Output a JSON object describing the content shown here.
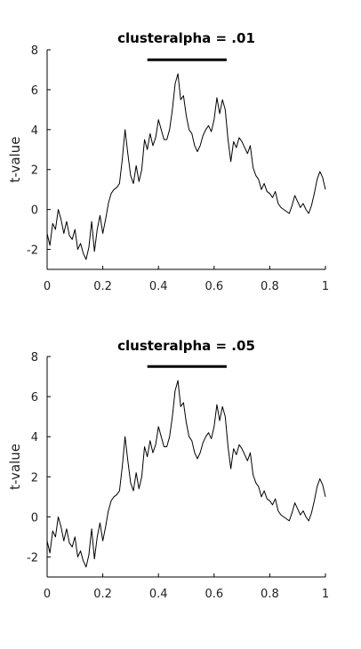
{
  "chart_data": [
    {
      "type": "line",
      "title": "clusteralpha = .01",
      "xlabel": "",
      "ylabel": "t-value",
      "xlim": [
        0,
        1
      ],
      "ylim": [
        -3,
        8
      ],
      "xticks": [
        "0",
        "0.2",
        "0.4",
        "0.6",
        "0.8",
        "1"
      ],
      "yticks": [
        "-2",
        "0",
        "2",
        "4",
        "6",
        "8"
      ],
      "grid": false,
      "line_color": "#000000",
      "cluster_bar": {
        "start": 0.36,
        "end": 0.645,
        "y": 7.5,
        "color": "#000000"
      },
      "series": [
        {
          "x": [
            0,
            0.01,
            0.02,
            0.03,
            0.04,
            0.05,
            0.06,
            0.07,
            0.08,
            0.09,
            0.1,
            0.11,
            0.12,
            0.13,
            0.14,
            0.15,
            0.16,
            0.17,
            0.18,
            0.19,
            0.2,
            0.21,
            0.22,
            0.23,
            0.24,
            0.25,
            0.26,
            0.27,
            0.28,
            0.29,
            0.3,
            0.31,
            0.32,
            0.33,
            0.34,
            0.35,
            0.36,
            0.37,
            0.38,
            0.39,
            0.4,
            0.41,
            0.42,
            0.43,
            0.44,
            0.45,
            0.46,
            0.47,
            0.48,
            0.49,
            0.5,
            0.51,
            0.52,
            0.53,
            0.54,
            0.55,
            0.56,
            0.57,
            0.58,
            0.59,
            0.6,
            0.61,
            0.62,
            0.63,
            0.64,
            0.65,
            0.66,
            0.67,
            0.68,
            0.69,
            0.7,
            0.71,
            0.72,
            0.73,
            0.74,
            0.75,
            0.76,
            0.77,
            0.78,
            0.79,
            0.8,
            0.81,
            0.82,
            0.83,
            0.84,
            0.85,
            0.86,
            0.87,
            0.88,
            0.89,
            0.9,
            0.91,
            0.92,
            0.93,
            0.94,
            0.95,
            0.96,
            0.97,
            0.98,
            0.99,
            1
          ],
          "y": [
            -1.2,
            -1.8,
            -0.7,
            -1.0,
            0.0,
            -0.5,
            -1.2,
            -0.6,
            -1.3,
            -1.5,
            -1.0,
            -2.0,
            -1.7,
            -2.2,
            -2.5,
            -1.9,
            -0.6,
            -2.1,
            -1.0,
            -0.3,
            -1.2,
            -0.5,
            0.3,
            0.8,
            1.0,
            1.1,
            1.3,
            2.5,
            4.0,
            2.8,
            1.7,
            1.3,
            2.2,
            1.4,
            2.0,
            3.5,
            3.0,
            3.8,
            3.2,
            3.6,
            4.5,
            4.0,
            3.5,
            3.5,
            4.0,
            5.0,
            6.3,
            6.8,
            5.5,
            5.7,
            4.7,
            4.0,
            3.8,
            3.2,
            2.9,
            3.2,
            3.7,
            4.0,
            4.2,
            3.9,
            4.5,
            5.6,
            4.8,
            5.5,
            5.0,
            3.5,
            2.4,
            3.4,
            3.1,
            3.6,
            3.4,
            3.1,
            2.8,
            3.2,
            2.1,
            1.7,
            1.5,
            1.0,
            1.3,
            0.9,
            0.8,
            0.6,
            0.9,
            0.3,
            0.1,
            0.0,
            -0.1,
            -0.2,
            0.2,
            0.7,
            0.4,
            0.1,
            0.3,
            0.0,
            -0.2,
            0.2,
            0.8,
            1.5,
            1.9,
            1.6,
            1.0
          ]
        }
      ]
    },
    {
      "type": "line",
      "title": "clusteralpha = .05",
      "xlabel": "",
      "ylabel": "t-value",
      "xlim": [
        0,
        1
      ],
      "ylim": [
        -3,
        8
      ],
      "xticks": [
        "0",
        "0.2",
        "0.4",
        "0.6",
        "0.8",
        "1"
      ],
      "yticks": [
        "-2",
        "0",
        "2",
        "4",
        "6",
        "8"
      ],
      "grid": false,
      "line_color": "#000000",
      "cluster_bar": {
        "start": 0.36,
        "end": 0.645,
        "y": 7.5,
        "color": "#000000"
      },
      "series": [
        {
          "x": [
            0,
            0.01,
            0.02,
            0.03,
            0.04,
            0.05,
            0.06,
            0.07,
            0.08,
            0.09,
            0.1,
            0.11,
            0.12,
            0.13,
            0.14,
            0.15,
            0.16,
            0.17,
            0.18,
            0.19,
            0.2,
            0.21,
            0.22,
            0.23,
            0.24,
            0.25,
            0.26,
            0.27,
            0.28,
            0.29,
            0.3,
            0.31,
            0.32,
            0.33,
            0.34,
            0.35,
            0.36,
            0.37,
            0.38,
            0.39,
            0.4,
            0.41,
            0.42,
            0.43,
            0.44,
            0.45,
            0.46,
            0.47,
            0.48,
            0.49,
            0.5,
            0.51,
            0.52,
            0.53,
            0.54,
            0.55,
            0.56,
            0.57,
            0.58,
            0.59,
            0.6,
            0.61,
            0.62,
            0.63,
            0.64,
            0.65,
            0.66,
            0.67,
            0.68,
            0.69,
            0.7,
            0.71,
            0.72,
            0.73,
            0.74,
            0.75,
            0.76,
            0.77,
            0.78,
            0.79,
            0.8,
            0.81,
            0.82,
            0.83,
            0.84,
            0.85,
            0.86,
            0.87,
            0.88,
            0.89,
            0.9,
            0.91,
            0.92,
            0.93,
            0.94,
            0.95,
            0.96,
            0.97,
            0.98,
            0.99,
            1
          ],
          "y": [
            -1.2,
            -1.8,
            -0.7,
            -1.0,
            0.0,
            -0.5,
            -1.2,
            -0.6,
            -1.3,
            -1.5,
            -1.0,
            -2.0,
            -1.7,
            -2.2,
            -2.5,
            -1.9,
            -0.6,
            -2.1,
            -1.0,
            -0.3,
            -1.2,
            -0.5,
            0.3,
            0.8,
            1.0,
            1.1,
            1.3,
            2.5,
            4.0,
            2.8,
            1.7,
            1.3,
            2.2,
            1.4,
            2.0,
            3.5,
            3.0,
            3.8,
            3.2,
            3.6,
            4.5,
            4.0,
            3.5,
            3.5,
            4.0,
            5.0,
            6.3,
            6.8,
            5.5,
            5.7,
            4.7,
            4.0,
            3.8,
            3.2,
            2.9,
            3.2,
            3.7,
            4.0,
            4.2,
            3.9,
            4.5,
            5.6,
            4.8,
            5.5,
            5.0,
            3.5,
            2.4,
            3.4,
            3.1,
            3.6,
            3.4,
            3.1,
            2.8,
            3.2,
            2.1,
            1.7,
            1.5,
            1.0,
            1.3,
            0.9,
            0.8,
            0.6,
            0.9,
            0.3,
            0.1,
            0.0,
            -0.1,
            -0.2,
            0.2,
            0.7,
            0.4,
            0.1,
            0.3,
            0.0,
            -0.2,
            0.2,
            0.8,
            1.5,
            1.9,
            1.6,
            1.0
          ]
        }
      ]
    }
  ]
}
